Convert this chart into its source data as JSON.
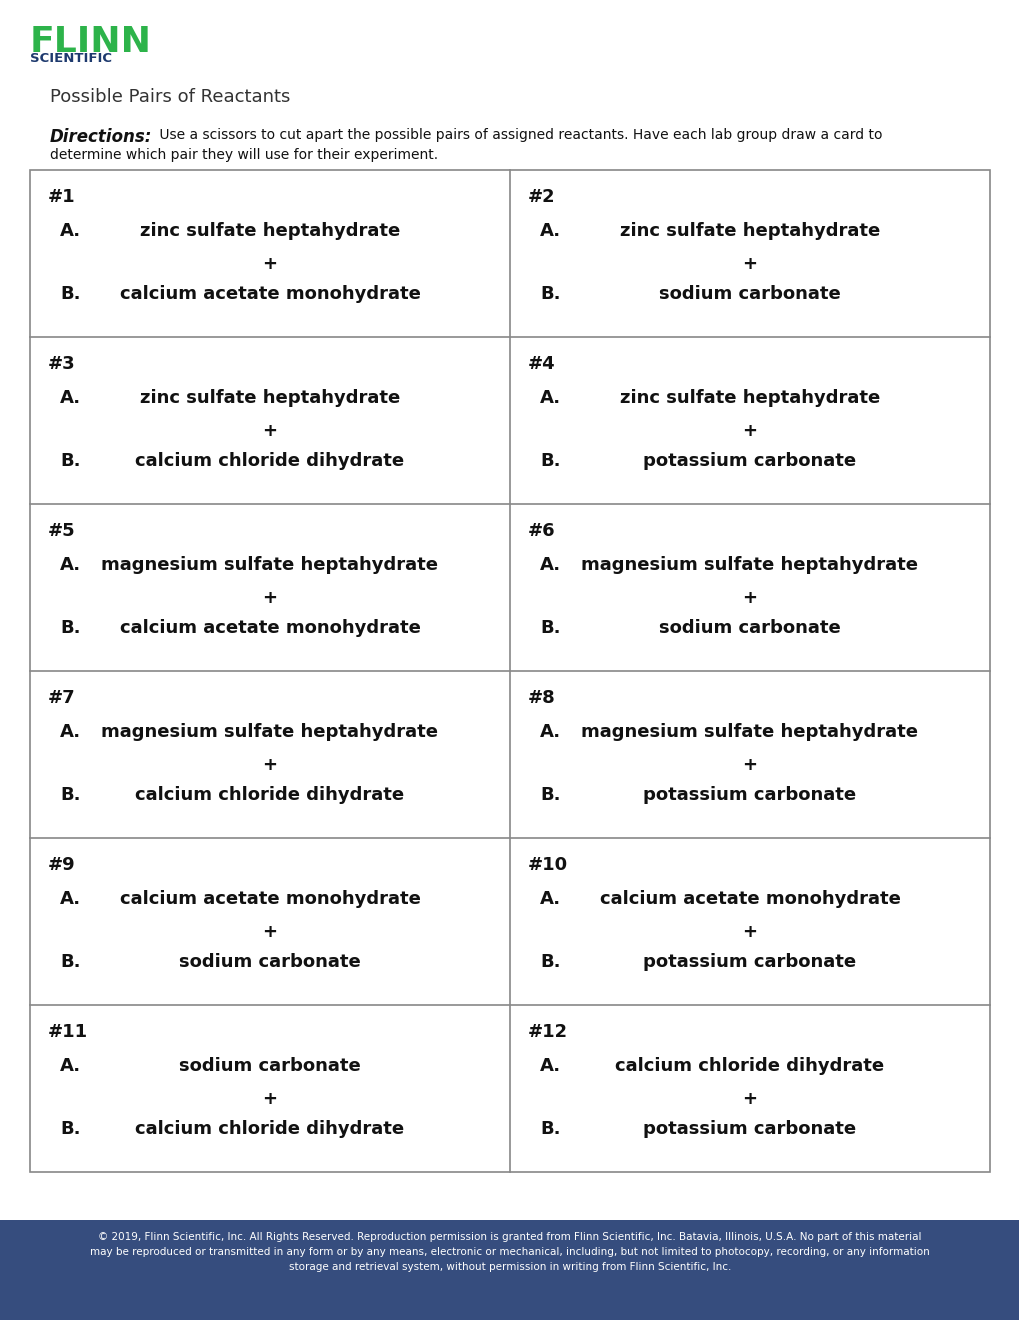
{
  "title": "Possible Pairs of Reactants",
  "directions_bold": "Directions:",
  "directions_line1": " Use a scissors to cut apart the possible pairs of assigned reactants. Have each lab group draw a card to",
  "directions_line2": "determine which pair they will use for their experiment.",
  "flinn_green": "#2db34a",
  "flinn_navy": "#1e3a6e",
  "footer_bg": "#364d7e",
  "footer_text_line1": "© 2019, Flinn Scientific, Inc. All Rights Reserved. Reproduction permission is granted from Flinn Scientific, Inc. Batavia, Illinois, U.S.A. No part of this material",
  "footer_text_line2": "may be reproduced or transmitted in any form or by any means, electronic or mechanical, including, but not limited to photocopy, recording, or any information",
  "footer_text_line3": "storage and retrieval system, without permission in writing from Flinn Scientific, Inc.",
  "pairs": [
    {
      "num": "#1",
      "A": "zinc sulfate heptahydrate",
      "B": "calcium acetate monohydrate"
    },
    {
      "num": "#2",
      "A": "zinc sulfate heptahydrate",
      "B": "sodium carbonate"
    },
    {
      "num": "#3",
      "A": "zinc sulfate heptahydrate",
      "B": "calcium chloride dihydrate"
    },
    {
      "num": "#4",
      "A": "zinc sulfate heptahydrate",
      "B": "potassium carbonate"
    },
    {
      "num": "#5",
      "A": "magnesium sulfate heptahydrate",
      "B": "calcium acetate monohydrate"
    },
    {
      "num": "#6",
      "A": "magnesium sulfate heptahydrate",
      "B": "sodium carbonate"
    },
    {
      "num": "#7",
      "A": "magnesium sulfate heptahydrate",
      "B": "calcium chloride dihydrate"
    },
    {
      "num": "#8",
      "A": "magnesium sulfate heptahydrate",
      "B": "potassium carbonate"
    },
    {
      "num": "#9",
      "A": "calcium acetate monohydrate",
      "B": "sodium carbonate"
    },
    {
      "num": "#10",
      "A": "calcium acetate monohydrate",
      "B": "potassium carbonate"
    },
    {
      "num": "#11",
      "A": "sodium carbonate",
      "B": "calcium chloride dihydrate"
    },
    {
      "num": "#12",
      "A": "calcium chloride dihydrate",
      "B": "potassium carbonate"
    }
  ]
}
